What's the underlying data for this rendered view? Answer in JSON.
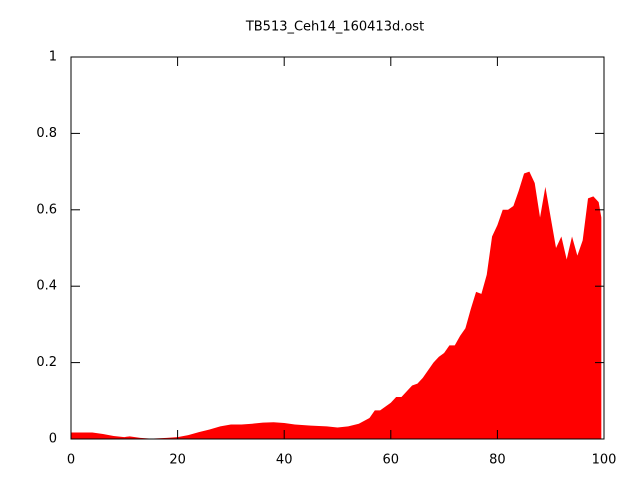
{
  "chart_data": {
    "type": "area",
    "title": "TB513_Ceh14_160413d.ost",
    "x": [
      0,
      4,
      6,
      8,
      10,
      11,
      13,
      15,
      18,
      20,
      22,
      24,
      26,
      28,
      30,
      32,
      34,
      36,
      38,
      40,
      42,
      45,
      48,
      50,
      52,
      54,
      56,
      57,
      58,
      60,
      61,
      62,
      64,
      65,
      66,
      67,
      68,
      69,
      70,
      71,
      72,
      73,
      74,
      75,
      76,
      77,
      78,
      79,
      80,
      81,
      82,
      83,
      84,
      85,
      86,
      87,
      88,
      89,
      90,
      91,
      92,
      93,
      94,
      95,
      96,
      97,
      98,
      99,
      99.5
    ],
    "series": [
      {
        "color": "#ff0000",
        "values": [
          0.017,
          0.017,
          0.013,
          0.008,
          0.005,
          0.007,
          0.003,
          0.001,
          0.003,
          0.005,
          0.01,
          0.018,
          0.025,
          0.033,
          0.038,
          0.038,
          0.04,
          0.043,
          0.044,
          0.042,
          0.038,
          0.035,
          0.033,
          0.03,
          0.033,
          0.04,
          0.055,
          0.075,
          0.075,
          0.095,
          0.11,
          0.11,
          0.14,
          0.145,
          0.16,
          0.18,
          0.2,
          0.215,
          0.225,
          0.245,
          0.245,
          0.27,
          0.29,
          0.34,
          0.385,
          0.38,
          0.43,
          0.53,
          0.56,
          0.6,
          0.6,
          0.61,
          0.65,
          0.695,
          0.7,
          0.67,
          0.58,
          0.66,
          0.58,
          0.5,
          0.53,
          0.47,
          0.53,
          0.48,
          0.52,
          0.63,
          0.635,
          0.62,
          0.58
        ]
      }
    ],
    "xlim": [
      0,
      100
    ],
    "ylim": [
      0,
      1
    ],
    "xticks": [
      0,
      20,
      40,
      60,
      80,
      100
    ],
    "yticks": [
      0,
      0.2,
      0.4,
      0.6,
      0.8,
      1
    ]
  }
}
